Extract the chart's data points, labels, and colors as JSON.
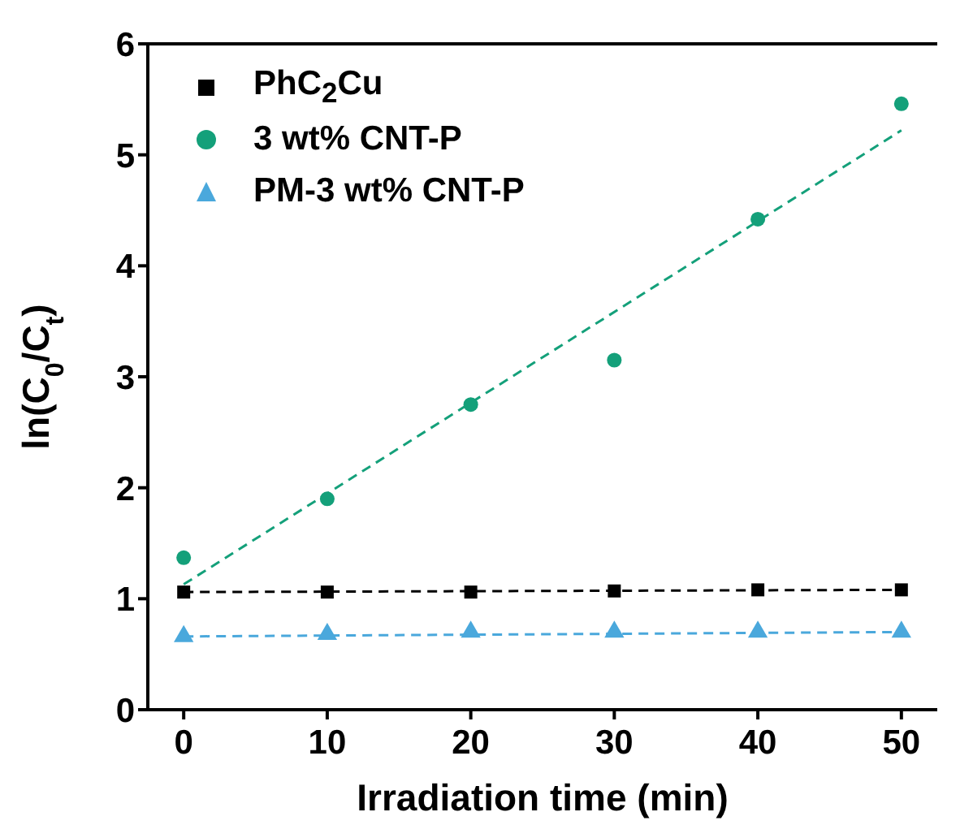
{
  "chart_data": {
    "type": "scatter",
    "xlabel": "Irradiation time (min)",
    "ylabel": "ln(C$_{0}$/C$_{t}$)",
    "xlim": [
      -2.5,
      52.5
    ],
    "xticks": [
      0,
      10,
      20,
      30,
      40,
      50
    ],
    "ylim": [
      0,
      6
    ],
    "yticks": [
      0,
      1,
      2,
      3,
      4,
      5,
      6
    ],
    "grid": false,
    "legend": "top left",
    "series": [
      {
        "name": "PhC$_{2}$Cu",
        "type": "scatter",
        "marker": "square",
        "color": "#000000",
        "x": [
          0,
          10,
          20,
          30,
          40,
          50
        ],
        "values": [
          1.06,
          1.06,
          1.06,
          1.07,
          1.08,
          1.08
        ]
      },
      {
        "name": "3 wt% CNT-P",
        "type": "scatter",
        "marker": "circle",
        "color": "#14a07a",
        "x": [
          0,
          10,
          20,
          30,
          40,
          50
        ],
        "values": [
          1.37,
          1.9,
          2.75,
          3.15,
          4.42,
          5.46
        ]
      },
      {
        "name": "PM-3 wt% CNT-P",
        "type": "scatter",
        "marker": "triangle",
        "color": "#4aa8dc",
        "x": [
          0,
          10,
          20,
          30,
          40,
          50
        ],
        "values": [
          0.66,
          0.68,
          0.7,
          0.7,
          0.7,
          0.7
        ]
      },
      {
        "type": "line",
        "marker": "none",
        "line_style": "dashed",
        "color": "#000000",
        "x": [
          0,
          50
        ],
        "values": [
          1.06,
          1.08
        ]
      },
      {
        "type": "line",
        "marker": "none",
        "line_style": "dashed",
        "color": "#14a07a",
        "x": [
          0,
          50
        ],
        "values": [
          1.13,
          5.22
        ]
      },
      {
        "type": "line",
        "marker": "none",
        "line_style": "dashed",
        "color": "#4aa8dc",
        "x": [
          0,
          50
        ],
        "values": [
          0.66,
          0.7
        ]
      }
    ]
  }
}
